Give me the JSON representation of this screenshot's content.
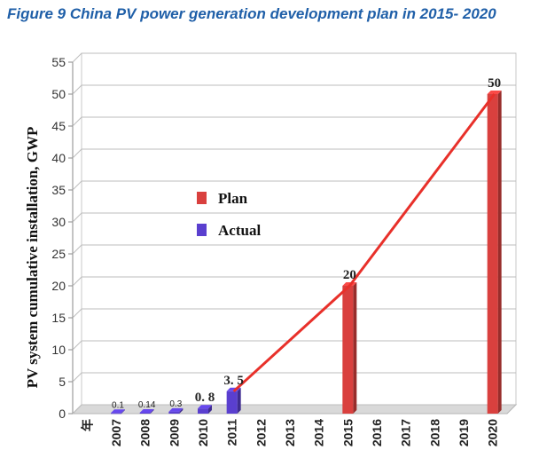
{
  "figure_title": "Figure 9 China PV power generation development plan in 2015- 2020",
  "chart_data": {
    "type": "bar",
    "categories": [
      "年",
      "2007",
      "2008",
      "2009",
      "2010",
      "2011",
      "2012",
      "2013",
      "2014",
      "2015",
      "2016",
      "2017",
      "2018",
      "2019",
      "2020"
    ],
    "series": [
      {
        "name": "Plan",
        "color": "#d9403e",
        "values": [
          null,
          null,
          null,
          null,
          null,
          null,
          null,
          null,
          null,
          20,
          null,
          null,
          null,
          null,
          50
        ]
      },
      {
        "name": "Actual",
        "color": "#5a3fcf",
        "values": [
          null,
          0.1,
          0.14,
          0.3,
          0.8,
          3.5,
          null,
          null,
          null,
          null,
          null,
          null,
          null,
          null,
          null
        ]
      }
    ],
    "data_labels": [
      {
        "category": "2007",
        "text": "0.1",
        "value": 0.1,
        "style": "small"
      },
      {
        "category": "2008",
        "text": "0.14",
        "value": 0.14,
        "style": "small"
      },
      {
        "category": "2009",
        "text": "0.3",
        "value": 0.3,
        "style": "small"
      },
      {
        "category": "2010",
        "text": "0. 8",
        "value": 0.8,
        "style": "mid"
      },
      {
        "category": "2011",
        "text": "3. 5",
        "value": 3.5,
        "style": "mid"
      },
      {
        "category": "2015",
        "text": "20",
        "value": 20,
        "style": "big"
      },
      {
        "category": "2020",
        "text": "50",
        "value": 50,
        "style": "big"
      }
    ],
    "trend_line": {
      "color": "#e8302a",
      "points": [
        {
          "category": "2011",
          "value": 3.5
        },
        {
          "category": "2015",
          "value": 20
        },
        {
          "category": "2020",
          "value": 50
        }
      ]
    },
    "ylabel": "PV system cumulative installation, GWP",
    "xlabel": "",
    "ylim": [
      0,
      55
    ],
    "yticks": [
      0,
      5,
      10,
      15,
      20,
      25,
      30,
      35,
      40,
      45,
      50,
      55
    ],
    "grid": true,
    "legend": {
      "position": "center-left",
      "entries": [
        "Plan",
        "Actual"
      ]
    }
  }
}
